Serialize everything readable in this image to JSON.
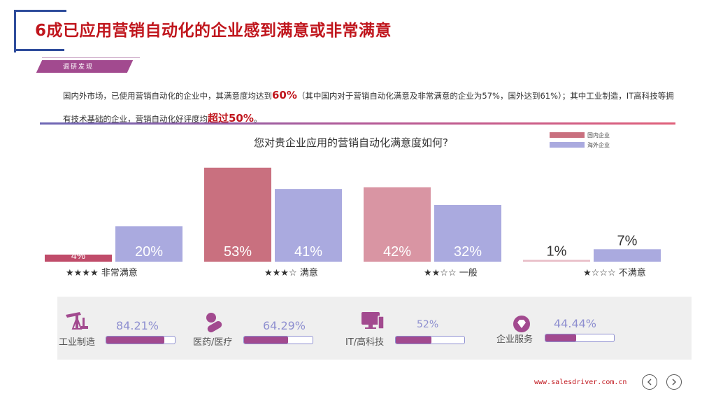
{
  "title": "6成已应用营销自动化的企业感到满意或非常满意",
  "tag": "调研发现",
  "intro": {
    "p1": "国内外市场，已使用营销自动化的企业中，其满意度均达到",
    "h1": "60%",
    "p2": "（其中国内对于营销自动化满意及非常满意的企业为57%，国外达到61%）；其中工业制造，IT高科技等拥有技术基础的企业，营销自动化好评度均",
    "h2": "超过50%",
    "p3": "。"
  },
  "chart_data": {
    "type": "bar",
    "title": "您对贵企业应用的营销自动化满意度如何?",
    "categories": [
      "★★★★ 非常满意",
      "★★★☆ 满意",
      "★★☆☆ 一般",
      "★☆☆☆ 不满意"
    ],
    "series": [
      {
        "name": "国内企业",
        "values": [
          4,
          53,
          42,
          1
        ],
        "labels": [
          "4%",
          "53%",
          "42%",
          "1%"
        ]
      },
      {
        "name": "海外企业",
        "values": [
          20,
          41,
          32,
          7
        ],
        "labels": [
          "20%",
          "41%",
          "32%",
          "7%"
        ]
      }
    ],
    "colors": {
      "domestic": [
        "#c04c6a",
        "#c9707f",
        "#d995a3",
        "#e8bcc6"
      ],
      "overseas": "#aaaadf"
    },
    "legend_placement": "top-right",
    "ylim": [
      0,
      60
    ]
  },
  "industries": [
    {
      "label": "工业制造",
      "value_text": "84.21%",
      "value": 84.21,
      "icon": "oil-pump-icon"
    },
    {
      "label": "医药/医疗",
      "value_text": "64.29%",
      "value": 64.29,
      "icon": "pill-icon"
    },
    {
      "label": "IT/高科技",
      "value_text": "52%",
      "value": 52,
      "icon": "computer-icon"
    },
    {
      "label": "企业服务",
      "value_text": "44.44%",
      "value": 44.44,
      "icon": "diamond-badge-icon"
    }
  ],
  "footer": {
    "url": "www.salesdriver.com.cn",
    "prev_icon": "chevron-left-icon",
    "next_icon": "chevron-right-icon"
  }
}
